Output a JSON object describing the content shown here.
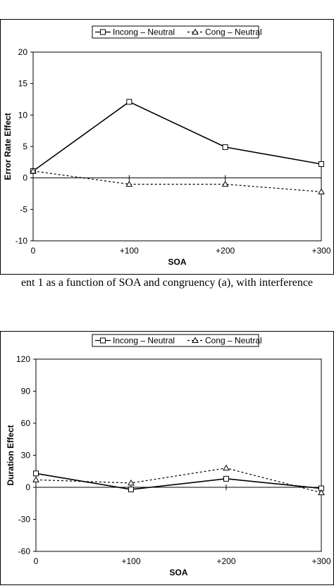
{
  "caption": "ent 1 as a function of SOA and congruency (a), with interference",
  "chart_data": [
    {
      "type": "line",
      "categories": [
        "0",
        "+100",
        "+200",
        "+300"
      ],
      "series": [
        {
          "name": "Incong – Neutral",
          "values": [
            1.1,
            12.1,
            4.9,
            2.2
          ],
          "marker": "square",
          "dash": "solid"
        },
        {
          "name": "Cong – Neutral",
          "values": [
            1.1,
            -1.0,
            -1.0,
            -2.2
          ],
          "marker": "triangle",
          "dash": "dashed"
        }
      ],
      "xlabel": "SOA",
      "ylabel": "Error Rate Effect",
      "ylim": [
        -10,
        20
      ],
      "yticks": [
        20,
        15,
        10,
        5,
        0,
        -5,
        -10
      ],
      "legend": "top-center",
      "grid": false
    },
    {
      "type": "line",
      "categories": [
        "0",
        "+100",
        "+200",
        "+300"
      ],
      "series": [
        {
          "name": "Incong – Neutral",
          "values": [
            13,
            -2,
            8,
            -1
          ],
          "marker": "square",
          "dash": "solid"
        },
        {
          "name": "Cong – Neutral",
          "values": [
            7,
            4,
            18,
            -5
          ],
          "marker": "triangle",
          "dash": "dashed"
        }
      ],
      "xlabel": "SOA",
      "ylabel": "Duration Effect",
      "ylim": [
        -60,
        120
      ],
      "yticks": [
        120,
        90,
        60,
        30,
        0,
        -30,
        -60
      ],
      "legend": "top-center",
      "grid": false
    }
  ]
}
